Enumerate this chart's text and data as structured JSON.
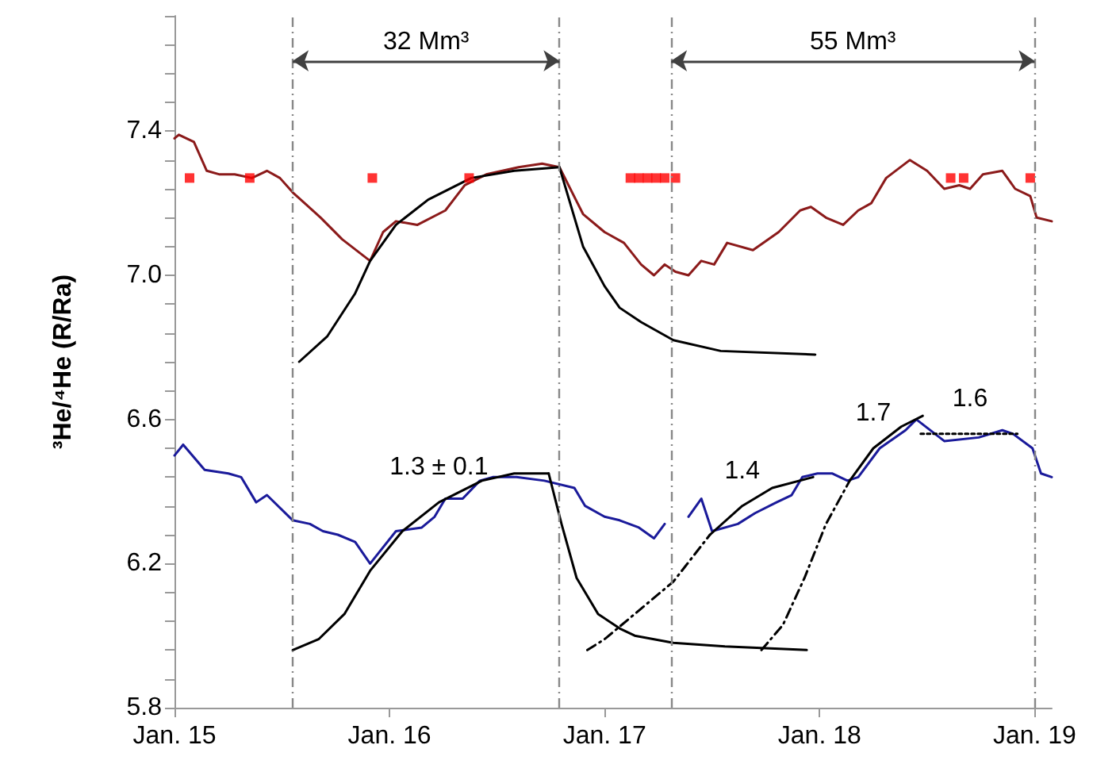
{
  "chart_data": {
    "type": "line",
    "ylabel": "³He/⁴He (R/Ra)",
    "xlim": [
      "--01-15",
      "--01-19T01:55"
    ],
    "xticks": [
      {
        "value": "--01-15",
        "label": "Jan. 15"
      },
      {
        "value": "--01-16",
        "label": "Jan. 16"
      },
      {
        "value": "--01-17",
        "label": "Jan. 17"
      },
      {
        "value": "--01-18",
        "label": "Jan. 18"
      },
      {
        "value": "--01-19",
        "label": "Jan. 19"
      }
    ],
    "ylim": [
      5.8,
      7.72
    ],
    "yticks": [
      5.8,
      {
        "value": 5.88,
        "label": null
      },
      {
        "value": 5.96,
        "label": null
      },
      {
        "value": 6.04,
        "label": null
      },
      {
        "value": 6.12,
        "label": null
      },
      6.2,
      {
        "value": 6.28,
        "label": null
      },
      {
        "value": 6.36,
        "label": null
      },
      {
        "value": 6.44,
        "label": null
      },
      {
        "value": 6.52,
        "label": null
      },
      6.6,
      {
        "value": 6.68,
        "label": null
      },
      {
        "value": 6.76,
        "label": null
      },
      {
        "value": 6.84,
        "label": null
      },
      {
        "value": 6.92,
        "label": null
      },
      {
        "value": 7.0,
        "label": "7.0"
      },
      {
        "value": 7.08,
        "label": null
      },
      {
        "value": 7.16,
        "label": null
      },
      {
        "value": 7.24,
        "label": null
      },
      {
        "value": 7.32,
        "label": null
      },
      7.4,
      {
        "value": 7.48,
        "label": null
      },
      {
        "value": 7.56,
        "label": null
      },
      {
        "value": 7.64,
        "label": null
      },
      {
        "value": 7.72,
        "label": null
      }
    ],
    "grid": false,
    "series": [
      {
        "color": "#8b1a1a",
        "marker": "none",
        "line_style": "solid",
        "x": [
          "--01-15T00:00",
          "--01-15T00:29",
          "--01-15T02:10",
          "--01-15T03:36",
          "--01-15T05:02",
          "--01-15T06:43",
          "--01-15T08:38",
          "--01-15T10:19",
          "--01-15T11:46",
          "--01-15T13:12",
          "--01-15T16:19",
          "--01-15T18:43",
          "--01-15T21:50",
          "--01-15T23:17",
          "--01-16T00:43",
          "--01-16T03:07",
          "--01-16T06:14",
          "--01-16T08:24",
          "--01-16T10:48",
          "--01-16T14:24",
          "--01-16T17:02",
          "--01-16T18:58",
          "--01-16T21:36",
          "--01-17T00:00",
          "--01-17T02:10",
          "--01-17T04:05",
          "--01-17T05:31",
          "--01-17T06:43",
          "--01-17T07:55",
          "--01-17T09:22",
          "--01-17T10:48",
          "--01-17T12:14",
          "--01-17T13:41",
          "--01-17T16:34",
          "--01-17T19:26",
          "--01-17T21:50",
          "--01-17T23:02",
          "--01-18T00:43",
          "--01-18T02:38",
          "--01-18T04:19",
          "--01-18T05:46",
          "--01-18T07:26",
          "--01-18T10:05",
          "--01-18T12:00",
          "--01-18T13:55",
          "--01-18T15:36",
          "--01-18T16:48",
          "--01-18T18:14",
          "--01-18T20:24",
          "--01-18T21:50",
          "--01-18T23:31",
          "--01-19T00:14",
          "--01-19T01:55"
        ],
        "values": [
          7.38,
          7.39,
          7.37,
          7.29,
          7.28,
          7.28,
          7.27,
          7.29,
          7.27,
          7.23,
          7.16,
          7.1,
          7.04,
          7.12,
          7.15,
          7.14,
          7.18,
          7.25,
          7.28,
          7.3,
          7.31,
          7.3,
          7.17,
          7.12,
          7.09,
          7.03,
          7.0,
          7.03,
          7.01,
          7.0,
          7.04,
          7.03,
          7.09,
          7.07,
          7.12,
          7.18,
          7.19,
          7.16,
          7.14,
          7.18,
          7.2,
          7.27,
          7.32,
          7.29,
          7.24,
          7.25,
          7.24,
          7.28,
          7.29,
          7.24,
          7.22,
          7.16,
          7.15
        ]
      },
      {
        "color": "#1a1a9a",
        "marker": "none",
        "line_style": "solid",
        "x": [
          "--01-15T00:00",
          "--01-15T00:58",
          "--01-15T03:22",
          "--01-15T06:00",
          "--01-15T07:26",
          "--01-15T09:07",
          "--01-15T10:19",
          "--01-15T13:12",
          "--01-15T15:07",
          "--01-15T16:34",
          "--01-15T18:14",
          "--01-15T20:10",
          "--01-15T21:50",
          "--01-16T00:43",
          "--01-16T03:36",
          "--01-16T05:02",
          "--01-16T06:14",
          "--01-16T08:10",
          "--01-16T10:05",
          "--01-16T11:31",
          "--01-16T14:10",
          "--01-16T17:17",
          "--01-16T20:38",
          "--01-16T21:50",
          "--01-17T00:00",
          "--01-17T01:41",
          "--01-17T03:50",
          "--01-17T05:31",
          "--01-17T06:43",
          "--01-17T07:55",
          "--01-17T09:22",
          "--01-17T10:48",
          "--01-17T12:00",
          "--01-17T14:53",
          "--01-17T16:48",
          "--01-17T19:12",
          "--01-17T20:53",
          "--01-17T22:05",
          "--01-17T23:46",
          "--01-18T01:26",
          "--01-18T03:07",
          "--01-18T04:19",
          "--01-18T06:43",
          "--01-18T09:36",
          "--01-18T10:48",
          "--01-18T13:55",
          "--01-18T17:46",
          "--01-18T20:24",
          "--01-18T21:36",
          "--01-18T23:46",
          "--01-19T00:43",
          "--01-19T01:55"
        ],
        "values": [
          6.5,
          6.53,
          6.46,
          6.45,
          6.44,
          6.37,
          6.39,
          6.32,
          6.31,
          6.29,
          6.28,
          6.26,
          6.2,
          6.29,
          6.3,
          6.33,
          6.38,
          6.38,
          6.43,
          6.44,
          6.44,
          6.43,
          6.41,
          6.36,
          6.33,
          6.32,
          6.3,
          6.27,
          6.31,
          null,
          6.33,
          6.38,
          6.29,
          6.31,
          6.34,
          6.37,
          6.39,
          6.44,
          6.45,
          6.45,
          6.43,
          6.44,
          6.52,
          6.57,
          6.6,
          6.54,
          6.55,
          6.57,
          6.56,
          6.52,
          6.45,
          6.44
        ]
      },
      {
        "type": "scatter",
        "color": "#ff0000",
        "marker": "square",
        "x": [
          "--01-15T01:41",
          "--01-15T08:24",
          "--01-15T22:05",
          "--01-16T08:53",
          "--01-17T02:53",
          "--01-17T03:50",
          "--01-17T04:48",
          "--01-17T05:46",
          "--01-17T06:43",
          "--01-17T07:55",
          "--01-18T14:38",
          "--01-18T16:05",
          "--01-18T23:31"
        ],
        "values": [
          7.27,
          7.27,
          7.27,
          7.27,
          7.27,
          7.27,
          7.27,
          7.27,
          7.27,
          7.27,
          7.27,
          7.27,
          7.27
        ]
      },
      {
        "color": "#000000",
        "marker": "none",
        "line_style": "solid",
        "x": [
          "--01-15T13:55",
          "--01-15T17:02",
          "--01-15T20:10",
          "--01-15T21:50",
          "--01-16T00:43",
          "--01-16T04:19",
          "--01-16T09:07",
          "--01-16T13:55",
          "--01-16T18:58"
        ],
        "values": [
          6.76,
          6.83,
          6.95,
          7.04,
          7.14,
          7.21,
          7.27,
          7.29,
          7.3
        ]
      },
      {
        "color": "#000000",
        "marker": "none",
        "line_style": "solid",
        "x": [
          "--01-16T18:58",
          "--01-16T21:36",
          "--01-17T00:00",
          "--01-17T01:41",
          "--01-17T04:05",
          "--01-17T07:41",
          "--01-17T12:58",
          "--01-17T23:31"
        ],
        "values": [
          7.3,
          7.08,
          6.97,
          6.91,
          6.87,
          6.82,
          6.79,
          6.78
        ]
      },
      {
        "color": "#000000",
        "marker": "none",
        "line_style": "solid",
        "x": [
          "--01-15T13:12",
          "--01-15T16:05",
          "--01-15T18:58",
          "--01-15T21:50",
          "--01-16T01:26",
          "--01-16T05:31",
          "--01-16T10:19",
          "--01-16T13:55",
          "--01-16T17:46"
        ],
        "values": [
          5.96,
          5.99,
          6.06,
          6.18,
          6.29,
          6.37,
          6.43,
          6.45,
          6.45
        ]
      },
      {
        "color": "#000000",
        "marker": "none",
        "line_style": "solid",
        "x": [
          "--01-16T17:46",
          "--01-16T19:12",
          "--01-16T20:53",
          "--01-16T23:17",
          "--01-17T01:41",
          "--01-17T03:22",
          "--01-17T07:41",
          "--01-17T13:26",
          "--01-17T22:34"
        ],
        "values": [
          6.45,
          6.31,
          6.16,
          6.06,
          6.02,
          6.0,
          5.98,
          5.97,
          5.96
        ]
      },
      {
        "color": "#000000",
        "marker": "none",
        "line_style": "dashed",
        "x": [
          "--01-16T22:05",
          "--01-17T00:00",
          "--01-17T03:22",
          "--01-17T07:41",
          "--01-17T11:46"
        ],
        "values": [
          5.96,
          5.99,
          6.06,
          6.15,
          6.28
        ]
      },
      {
        "color": "#000000",
        "marker": "none",
        "line_style": "solid",
        "x": [
          "--01-17T11:46",
          "--01-17T15:22",
          "--01-17T18:43",
          "--01-17T23:17"
        ],
        "values": [
          6.28,
          6.36,
          6.41,
          6.44
        ]
      },
      {
        "color": "#000000",
        "marker": "none",
        "line_style": "dashed",
        "x": [
          "--01-17T17:31",
          "--01-17T19:55",
          "--01-17T22:19",
          "--01-18T00:43",
          "--01-18T03:22"
        ],
        "values": [
          5.96,
          6.03,
          6.16,
          6.31,
          6.43
        ]
      },
      {
        "color": "#000000",
        "marker": "none",
        "line_style": "solid",
        "x": [
          "--01-18T03:22",
          "--01-18T06:00",
          "--01-18T09:07",
          "--01-18T11:31"
        ],
        "values": [
          6.43,
          6.52,
          6.58,
          6.61
        ]
      },
      {
        "color": "#000000",
        "marker": "none",
        "line_style": "dotted",
        "x": [
          "--01-18T11:17",
          "--01-18T16:48",
          "--01-18T22:05"
        ],
        "values": [
          6.56,
          6.56,
          6.56
        ]
      }
    ],
    "ref_lines": [
      {
        "axis": "x",
        "value": "--01-15T13:12",
        "color": "#888888",
        "line_style": "dashed"
      },
      {
        "axis": "x",
        "value": "--01-16T18:58",
        "color": "#888888",
        "line_style": "dashed"
      },
      {
        "axis": "x",
        "value": "--01-17T07:26",
        "color": "#888888",
        "line_style": "dashed"
      },
      {
        "axis": "x",
        "value": "--01-19T00:00",
        "color": "#888888",
        "line_style": "dashed"
      }
    ],
    "annotations": [
      "32 Mm³",
      "55 Mm³",
      {
        "text": "1.3 ± 0.1",
        "x": "--01-16T05:31",
        "y": 6.37
      },
      {
        "text": "1.4",
        "x": "--01-17T15:22",
        "y": 6.36
      },
      {
        "text": "1.7",
        "x": "--01-18T06:00",
        "y": 6.52
      },
      {
        "text": "1.6",
        "x": "--01-18T16:48",
        "y": 6.56
      }
    ]
  }
}
